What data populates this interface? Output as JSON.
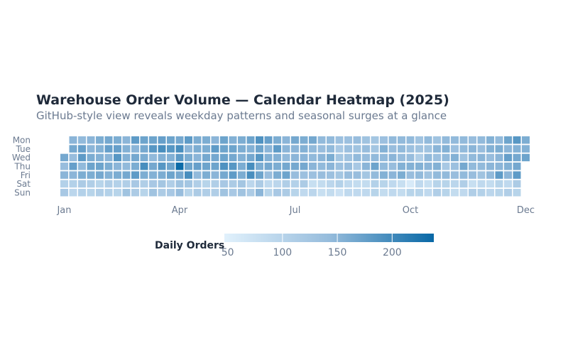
{
  "title": "Warehouse Order Volume — Calendar Heatmap (2025)",
  "subtitle": "GitHub-style view reveals weekday patterns and seasonal surges at a glance",
  "chart_data": {
    "type": "heatmap",
    "year": 2025,
    "title": "Warehouse Order Volume — Calendar Heatmap (2025)",
    "subtitle": "GitHub-style view reveals weekday patterns and seasonal surges at a glance",
    "day_labels": [
      "Mon",
      "Tue",
      "Wed",
      "Thu",
      "Fri",
      "Sat",
      "Sun"
    ],
    "month_ticks": [
      {
        "label": "Jan",
        "week": 0
      },
      {
        "label": "Apr",
        "week": 13
      },
      {
        "label": "Jul",
        "week": 26
      },
      {
        "label": "Oct",
        "week": 39
      },
      {
        "label": "Dec",
        "week": 52
      }
    ],
    "legend": {
      "title": "Daily Orders",
      "ticks": [
        50,
        100,
        150,
        200
      ],
      "range": [
        47,
        238
      ],
      "color_low": "#e1f1fc",
      "color_high": "#0868a6"
    },
    "weeks": [
      [
        null,
        null,
        165,
        140,
        150,
        105,
        120
      ],
      [
        150,
        165,
        140,
        175,
        150,
        105,
        95
      ],
      [
        145,
        175,
        180,
        145,
        160,
        115,
        105
      ],
      [
        150,
        150,
        160,
        170,
        160,
        110,
        100
      ],
      [
        160,
        155,
        155,
        170,
        165,
        100,
        110
      ],
      [
        165,
        175,
        150,
        160,
        155,
        110,
        105
      ],
      [
        160,
        175,
        185,
        150,
        160,
        105,
        100
      ],
      [
        150,
        155,
        155,
        145,
        165,
        110,
        130
      ],
      [
        180,
        150,
        165,
        160,
        180,
        120,
        115
      ],
      [
        170,
        165,
        160,
        195,
        160,
        110,
        100
      ],
      [
        170,
        185,
        145,
        165,
        155,
        120,
        130
      ],
      [
        175,
        195,
        155,
        185,
        160,
        125,
        115
      ],
      [
        170,
        185,
        155,
        170,
        170,
        110,
        120
      ],
      [
        165,
        195,
        180,
        235,
        165,
        130,
        140
      ],
      [
        180,
        150,
        160,
        170,
        195,
        125,
        100
      ],
      [
        160,
        160,
        150,
        175,
        145,
        110,
        115
      ],
      [
        160,
        160,
        165,
        170,
        160,
        100,
        110
      ],
      [
        150,
        180,
        165,
        170,
        150,
        110,
        110
      ],
      [
        170,
        170,
        170,
        190,
        165,
        120,
        130
      ],
      [
        155,
        170,
        165,
        185,
        180,
        115,
        120
      ],
      [
        160,
        160,
        155,
        160,
        160,
        125,
        130
      ],
      [
        170,
        155,
        165,
        195,
        195,
        95,
        115
      ],
      [
        190,
        170,
        185,
        160,
        170,
        115,
        150
      ],
      [
        175,
        150,
        155,
        165,
        140,
        90,
        100
      ],
      [
        160,
        180,
        155,
        160,
        160,
        95,
        120
      ],
      [
        150,
        150,
        145,
        165,
        170,
        110,
        115
      ],
      [
        165,
        150,
        150,
        165,
        140,
        105,
        100
      ],
      [
        160,
        155,
        150,
        165,
        135,
        115,
        90
      ],
      [
        165,
        145,
        145,
        150,
        135,
        80,
        95
      ],
      [
        145,
        140,
        150,
        145,
        140,
        85,
        80
      ],
      [
        145,
        145,
        160,
        150,
        135,
        95,
        85
      ],
      [
        135,
        120,
        125,
        135,
        125,
        105,
        75
      ],
      [
        135,
        135,
        130,
        140,
        140,
        90,
        90
      ],
      [
        140,
        130,
        145,
        120,
        140,
        85,
        90
      ],
      [
        130,
        140,
        140,
        150,
        125,
        85,
        90
      ],
      [
        125,
        125,
        145,
        170,
        145,
        105,
        100
      ],
      [
        135,
        155,
        145,
        145,
        155,
        100,
        85
      ],
      [
        145,
        140,
        150,
        140,
        150,
        90,
        90
      ],
      [
        145,
        145,
        140,
        155,
        160,
        80,
        85
      ],
      [
        145,
        135,
        140,
        155,
        140,
        60,
        100
      ],
      [
        130,
        130,
        110,
        155,
        145,
        90,
        100
      ],
      [
        145,
        130,
        145,
        150,
        130,
        80,
        90
      ],
      [
        130,
        150,
        135,
        155,
        145,
        100,
        110
      ],
      [
        145,
        155,
        145,
        120,
        145,
        100,
        100
      ],
      [
        145,
        135,
        155,
        135,
        140,
        95,
        85
      ],
      [
        145,
        145,
        130,
        165,
        145,
        110,
        90
      ],
      [
        140,
        150,
        145,
        145,
        140,
        80,
        110
      ],
      [
        145,
        140,
        150,
        145,
        130,
        90,
        105
      ],
      [
        155,
        155,
        140,
        150,
        145,
        85,
        95
      ],
      [
        145,
        160,
        150,
        150,
        180,
        100,
        100
      ],
      [
        170,
        150,
        175,
        155,
        150,
        90,
        110
      ],
      [
        185,
        155,
        165,
        165,
        180,
        115,
        100
      ],
      [
        160,
        155,
        170,
        null,
        null,
        null,
        null
      ]
    ]
  }
}
